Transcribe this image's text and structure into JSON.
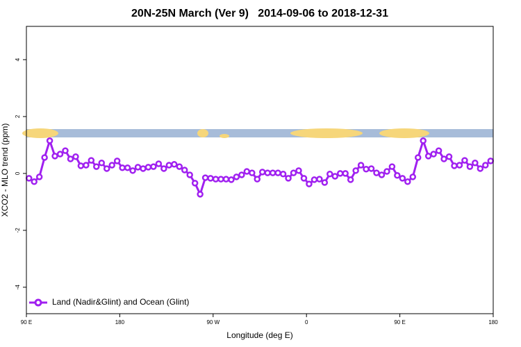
{
  "chart_data": {
    "type": "line",
    "title": "20N-25N March (Ver 9)   2014-09-06 to 2018-12-31",
    "x_label": "Longitude (deg E)",
    "y_label": "XCO2 - MLO trend (ppm)",
    "x": [
      92.5,
      97.5,
      102.5,
      107.5,
      112.5,
      117.5,
      122.5,
      127.5,
      132.5,
      137.5,
      142.5,
      147.5,
      152.5,
      157.5,
      162.5,
      167.5,
      172.5,
      177.5,
      182.5,
      187.5,
      192.5,
      197.5,
      202.5,
      207.5,
      212.5,
      217.5,
      222.5,
      227.5,
      232.5,
      237.5,
      242.5,
      247.5,
      252.5,
      257.5,
      262.5,
      267.5,
      272.5,
      277.5,
      282.5,
      287.5,
      292.5,
      297.5,
      302.5,
      307.5,
      312.5,
      317.5,
      322.5,
      327.5,
      332.5,
      337.5,
      342.5,
      347.5,
      352.5,
      357.5,
      362.5,
      367.5,
      372.5,
      377.5,
      382.5,
      387.5,
      392.5,
      397.5,
      402.5,
      407.5,
      412.5,
      417.5,
      422.5,
      427.5,
      432.5,
      437.5,
      442.5,
      447.5,
      452.5,
      457.5,
      462.5,
      467.5,
      472.5,
      477.5,
      482.5,
      487.5,
      492.5,
      497.5,
      502.5,
      507.5,
      512.5,
      517.5,
      522.5,
      527.5,
      532.5,
      537.5
    ],
    "series": [
      {
        "name": "Land (Nadir&Glint) and Ocean (Glint)",
        "color": "#a020f0",
        "values": [
          -0.17,
          -0.29,
          -0.12,
          0.56,
          1.15,
          0.61,
          0.68,
          0.8,
          0.51,
          0.59,
          0.27,
          0.29,
          0.46,
          0.24,
          0.37,
          0.17,
          0.29,
          0.44,
          0.2,
          0.2,
          0.1,
          0.22,
          0.17,
          0.22,
          0.24,
          0.34,
          0.17,
          0.29,
          0.32,
          0.24,
          0.12,
          -0.05,
          -0.34,
          -0.73,
          -0.15,
          -0.17,
          -0.2,
          -0.2,
          -0.2,
          -0.22,
          -0.12,
          -0.05,
          0.07,
          0.02,
          -0.2,
          0.05,
          0.02,
          0.02,
          0.02,
          -0.02,
          -0.17,
          0.02,
          0.1,
          -0.17,
          -0.37,
          -0.22,
          -0.2,
          -0.32,
          -0.02,
          -0.1,
          0,
          0,
          -0.22,
          0.1,
          0.29,
          0.15,
          0.17,
          0.02,
          -0.05,
          0.07,
          0.24,
          -0.07,
          -0.17,
          -0.29,
          -0.12,
          0.56,
          1.15,
          0.61,
          0.68,
          0.8,
          0.51,
          0.59,
          0.27,
          0.29,
          0.46,
          0.24,
          0.37,
          0.17,
          0.29,
          0.44
        ]
      }
    ],
    "xlim": [
      90,
      540
    ],
    "xticks": [
      {
        "value": 90,
        "label": "90 E"
      },
      180,
      {
        "value": 270,
        "label": "90 W"
      },
      {
        "value": 360,
        "label": "0"
      },
      {
        "value": 450,
        "label": "90 E"
      },
      {
        "value": 540,
        "label": "180"
      }
    ],
    "ylim": [
      -4.93,
      5.17
    ],
    "yticks": [
      -4,
      -2,
      0,
      2,
      4
    ],
    "legend": "bottom-left"
  }
}
